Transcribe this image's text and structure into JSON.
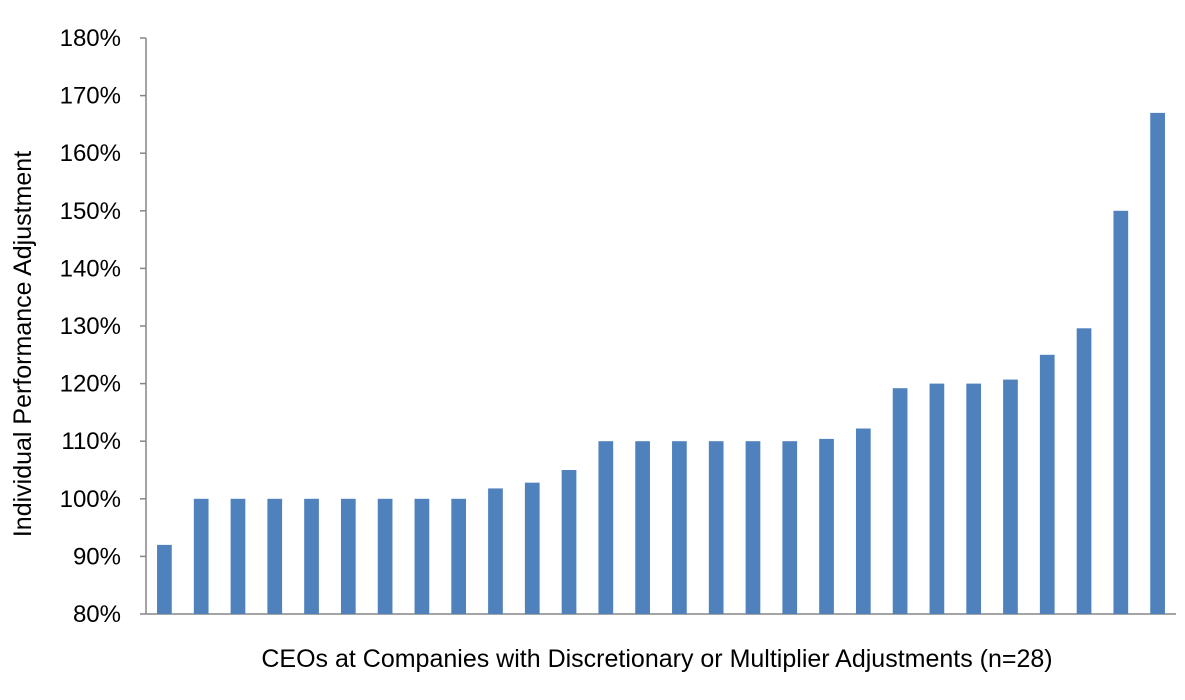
{
  "chart_data": {
    "type": "bar",
    "title": "",
    "xlabel": "CEOs at Companies with Discretionary or Multiplier Adjustments (n=28)",
    "ylabel": "Individual Performance Adjustment",
    "ylim": [
      80,
      180
    ],
    "yticks": [
      80,
      90,
      100,
      110,
      120,
      130,
      140,
      150,
      160,
      170,
      180
    ],
    "ytick_labels": [
      "80%",
      "90%",
      "100%",
      "110%",
      "120%",
      "130%",
      "140%",
      "150%",
      "160%",
      "170%",
      "180%"
    ],
    "value_unit": "%",
    "grid": false,
    "legend": "none",
    "bar_color": "#4F81BD",
    "values": [
      92,
      100,
      100,
      100,
      100,
      100,
      100,
      100,
      100,
      101.8,
      102.8,
      105,
      110,
      110,
      110,
      110,
      110,
      110,
      110.4,
      112.2,
      119.2,
      120,
      120,
      120.7,
      125,
      129.6,
      150,
      167
    ]
  }
}
